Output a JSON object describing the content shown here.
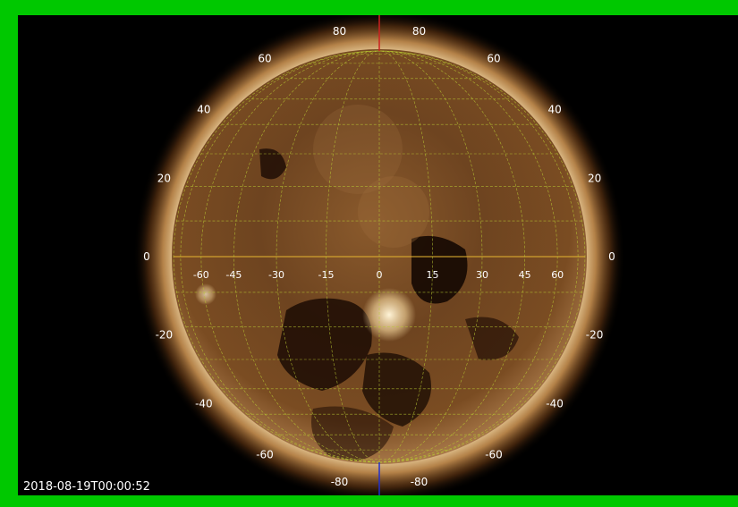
{
  "border_color": "#00c800",
  "timestamp": "2018-08-19T00:00:52",
  "grid_color": "#b8c832",
  "equator_color": "#e0b030",
  "pole_axis_top_color": "#cc2020",
  "pole_axis_bottom_color": "#2030cc",
  "latitude_labels_left": [
    {
      "text": "80",
      "lat": 80
    },
    {
      "text": "60",
      "lat": 60
    },
    {
      "text": "40",
      "lat": 40
    },
    {
      "text": "20",
      "lat": 20
    },
    {
      "text": "0",
      "lat": 0
    },
    {
      "text": "-20",
      "lat": -20
    },
    {
      "text": "-40",
      "lat": -40
    },
    {
      "text": "-60",
      "lat": -60
    },
    {
      "text": "-80",
      "lat": -80
    }
  ],
  "latitude_labels_right": [
    {
      "text": "80",
      "lat": 80
    },
    {
      "text": "60",
      "lat": 60
    },
    {
      "text": "40",
      "lat": 40
    },
    {
      "text": "20",
      "lat": 20
    },
    {
      "text": "0",
      "lat": 0
    },
    {
      "text": "-20",
      "lat": -20
    },
    {
      "text": "-40",
      "lat": -40
    },
    {
      "text": "-60",
      "lat": -60
    },
    {
      "text": "-80",
      "lat": -80
    }
  ],
  "longitude_labels": [
    {
      "text": "-60",
      "lon": -60
    },
    {
      "text": "-45",
      "lon": -45
    },
    {
      "text": "-30",
      "lon": -30
    },
    {
      "text": "-15",
      "lon": -15
    },
    {
      "text": "0",
      "lon": 0
    },
    {
      "text": "15",
      "lon": 15
    },
    {
      "text": "30",
      "lon": 30
    },
    {
      "text": "45",
      "lon": 45
    },
    {
      "text": "60",
      "lon": 60
    }
  ]
}
